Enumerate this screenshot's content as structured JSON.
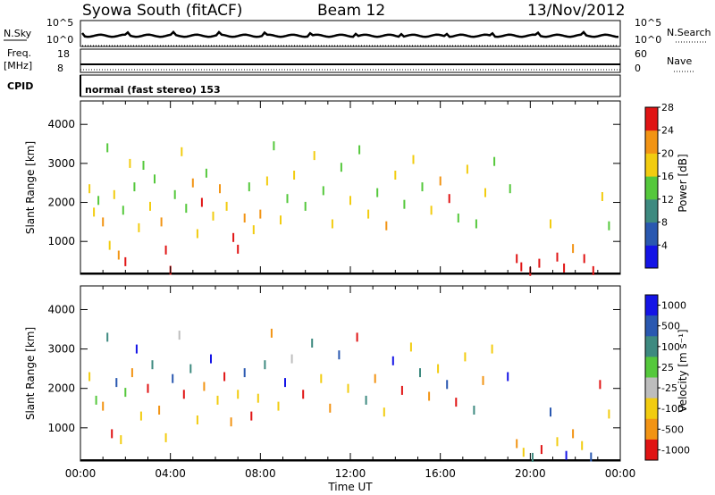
{
  "header": {
    "station": "Syowa South (fitACF)",
    "beam": "Beam 12",
    "date": "13/Nov/2012"
  },
  "noise_panel": {
    "left_label": "N.Sky",
    "right_label": "N.Search",
    "left_ticks": [
      "10^5",
      "10^0"
    ],
    "right_ticks": [
      "10^5",
      "10^0"
    ]
  },
  "freq_panel": {
    "left_label_1": "Freq.",
    "left_label_2": "[MHz]",
    "right_label": "Nave",
    "left_ticks": [
      "18",
      "8"
    ],
    "right_ticks": [
      "60",
      "0"
    ]
  },
  "cpid_panel": {
    "label": "CPID",
    "mode_text": "normal (fast stereo) 153"
  },
  "x_axis": {
    "title": "Time UT",
    "ticks": [
      "00:00",
      "04:00",
      "08:00",
      "12:00",
      "16:00",
      "20:00",
      "00:00"
    ]
  },
  "y_axis": {
    "title": "Slant Range [km]",
    "ticks": [
      "1000",
      "2000",
      "3000",
      "4000"
    ]
  },
  "power_colorbar": {
    "title": "Power [dB]",
    "ticks": [
      "4",
      "8",
      "12",
      "16",
      "20",
      "24",
      "28"
    ],
    "colors": [
      "#1414e6",
      "#2a58b0",
      "#3e8a80",
      "#55c83c",
      "#f2cc10",
      "#f29414",
      "#e01414"
    ]
  },
  "velocity_colorbar": {
    "title": "Velocity [m s⁻¹]",
    "ticks": [
      "1000",
      "500",
      "100",
      "25",
      "-25",
      "-100",
      "-500",
      "-1000"
    ],
    "colors": [
      "#1414e6",
      "#2a58b0",
      "#3e8a80",
      "#55c83c",
      "#bdbdbd",
      "#f2cc10",
      "#f29414",
      "#e01414"
    ]
  },
  "chart_data": [
    {
      "type": "scatter",
      "title": "Power",
      "xlabel": "Time UT",
      "ylabel": "Slant Range [km]",
      "xlim": [
        0,
        24
      ],
      "ylim": [
        180,
        4600
      ],
      "clim": [
        0,
        32
      ],
      "units": "dB",
      "points": [
        [
          0.4,
          2350,
          16
        ],
        [
          0.6,
          1750,
          16
        ],
        [
          0.8,
          2050,
          12
        ],
        [
          1.0,
          1500,
          20
        ],
        [
          1.2,
          3400,
          12
        ],
        [
          1.3,
          900,
          16
        ],
        [
          1.5,
          2200,
          16
        ],
        [
          1.7,
          650,
          20
        ],
        [
          1.9,
          1800,
          12
        ],
        [
          2.0,
          480,
          28
        ],
        [
          2.2,
          3000,
          16
        ],
        [
          2.4,
          2400,
          12
        ],
        [
          2.6,
          1350,
          16
        ],
        [
          2.8,
          2950,
          12
        ],
        [
          3.1,
          1900,
          16
        ],
        [
          3.3,
          2600,
          12
        ],
        [
          3.6,
          1500,
          20
        ],
        [
          3.8,
          780,
          24
        ],
        [
          4.0,
          260,
          28
        ],
        [
          4.2,
          2200,
          12
        ],
        [
          4.5,
          3300,
          16
        ],
        [
          4.7,
          1850,
          12
        ],
        [
          5.0,
          2500,
          20
        ],
        [
          5.2,
          1200,
          16
        ],
        [
          5.4,
          2000,
          24
        ],
        [
          5.6,
          2750,
          12
        ],
        [
          5.9,
          1650,
          16
        ],
        [
          6.2,
          2350,
          20
        ],
        [
          6.5,
          1900,
          16
        ],
        [
          6.8,
          1100,
          28
        ],
        [
          7.0,
          800,
          24
        ],
        [
          7.3,
          1600,
          20
        ],
        [
          7.5,
          2400,
          12
        ],
        [
          7.7,
          1300,
          16
        ],
        [
          8.0,
          1700,
          20
        ],
        [
          8.3,
          2550,
          16
        ],
        [
          8.6,
          3450,
          12
        ],
        [
          8.9,
          1550,
          16
        ],
        [
          9.2,
          2100,
          12
        ],
        [
          9.5,
          2700,
          16
        ],
        [
          10.0,
          1900,
          12
        ],
        [
          10.4,
          3200,
          16
        ],
        [
          10.8,
          2300,
          12
        ],
        [
          11.2,
          1450,
          16
        ],
        [
          11.6,
          2900,
          12
        ],
        [
          12.0,
          2050,
          16
        ],
        [
          12.4,
          3350,
          12
        ],
        [
          12.8,
          1700,
          16
        ],
        [
          13.2,
          2250,
          12
        ],
        [
          13.6,
          1400,
          20
        ],
        [
          14.0,
          2700,
          16
        ],
        [
          14.4,
          1950,
          12
        ],
        [
          14.8,
          3100,
          16
        ],
        [
          15.2,
          2400,
          12
        ],
        [
          15.6,
          1800,
          16
        ],
        [
          16.0,
          2550,
          20
        ],
        [
          16.4,
          2100,
          24
        ],
        [
          16.8,
          1600,
          12
        ],
        [
          17.2,
          2850,
          16
        ],
        [
          17.6,
          1450,
          12
        ],
        [
          18.0,
          2250,
          16
        ],
        [
          18.4,
          3050,
          12
        ],
        [
          19.1,
          2350,
          12
        ],
        [
          19.4,
          560,
          28
        ],
        [
          19.6,
          350,
          28
        ],
        [
          20.0,
          230,
          28
        ],
        [
          20.4,
          440,
          28
        ],
        [
          20.9,
          1450,
          16
        ],
        [
          21.2,
          600,
          24
        ],
        [
          21.5,
          320,
          28
        ],
        [
          21.9,
          820,
          20
        ],
        [
          22.4,
          560,
          24
        ],
        [
          22.8,
          250,
          28
        ],
        [
          23.2,
          2150,
          16
        ],
        [
          23.5,
          1400,
          12
        ]
      ]
    },
    {
      "type": "scatter",
      "title": "Velocity",
      "xlabel": "Time UT",
      "ylabel": "Slant Range [km]",
      "xlim": [
        0,
        24
      ],
      "ylim": [
        180,
        4600
      ],
      "clim": [
        -1200,
        1200
      ],
      "units": "m s-1",
      "points": [
        [
          0.4,
          2300,
          -100
        ],
        [
          0.7,
          1700,
          50
        ],
        [
          1.0,
          1550,
          -500
        ],
        [
          1.2,
          3300,
          100
        ],
        [
          1.4,
          850,
          -1000
        ],
        [
          1.6,
          2150,
          500
        ],
        [
          1.8,
          700,
          -100
        ],
        [
          2.0,
          1900,
          25
        ],
        [
          2.3,
          2400,
          -500
        ],
        [
          2.5,
          3000,
          1000
        ],
        [
          2.7,
          1300,
          -100
        ],
        [
          3.0,
          2000,
          -1000
        ],
        [
          3.2,
          2600,
          100
        ],
        [
          3.5,
          1450,
          -500
        ],
        [
          3.8,
          750,
          -100
        ],
        [
          4.1,
          2250,
          500
        ],
        [
          4.4,
          3350,
          -25
        ],
        [
          4.6,
          1850,
          -1000
        ],
        [
          4.9,
          2500,
          100
        ],
        [
          5.2,
          1200,
          -100
        ],
        [
          5.5,
          2050,
          -500
        ],
        [
          5.8,
          2750,
          1000
        ],
        [
          6.1,
          1700,
          -100
        ],
        [
          6.4,
          2300,
          -1000
        ],
        [
          6.7,
          1150,
          -500
        ],
        [
          7.0,
          1850,
          -100
        ],
        [
          7.3,
          2400,
          500
        ],
        [
          7.6,
          1300,
          -1000
        ],
        [
          7.9,
          1750,
          -100
        ],
        [
          8.2,
          2600,
          100
        ],
        [
          8.5,
          3400,
          -500
        ],
        [
          8.8,
          1550,
          -100
        ],
        [
          9.1,
          2150,
          1000
        ],
        [
          9.4,
          2750,
          -25
        ],
        [
          9.9,
          1850,
          -1000
        ],
        [
          10.3,
          3150,
          100
        ],
        [
          10.7,
          2250,
          -100
        ],
        [
          11.1,
          1500,
          -500
        ],
        [
          11.5,
          2850,
          500
        ],
        [
          11.9,
          2000,
          -100
        ],
        [
          12.3,
          3300,
          -1000
        ],
        [
          12.7,
          1700,
          100
        ],
        [
          13.1,
          2250,
          -500
        ],
        [
          13.5,
          1400,
          -100
        ],
        [
          13.9,
          2700,
          1000
        ],
        [
          14.3,
          1950,
          -1000
        ],
        [
          14.7,
          3050,
          -100
        ],
        [
          15.1,
          2400,
          100
        ],
        [
          15.5,
          1800,
          -500
        ],
        [
          15.9,
          2500,
          -100
        ],
        [
          16.3,
          2100,
          500
        ],
        [
          16.7,
          1650,
          -1000
        ],
        [
          17.1,
          2800,
          -100
        ],
        [
          17.5,
          1450,
          100
        ],
        [
          17.9,
          2200,
          -500
        ],
        [
          18.3,
          3000,
          -100
        ],
        [
          19.0,
          2300,
          1000
        ],
        [
          19.4,
          600,
          -500
        ],
        [
          19.7,
          380,
          -100
        ],
        [
          20.1,
          250,
          100
        ],
        [
          20.5,
          450,
          -1000
        ],
        [
          20.9,
          1400,
          500
        ],
        [
          21.2,
          650,
          -100
        ],
        [
          21.6,
          300,
          1000
        ],
        [
          21.9,
          850,
          -500
        ],
        [
          22.3,
          550,
          -100
        ],
        [
          22.7,
          260,
          500
        ],
        [
          23.1,
          2100,
          -1000
        ],
        [
          23.5,
          1350,
          -100
        ]
      ]
    }
  ]
}
